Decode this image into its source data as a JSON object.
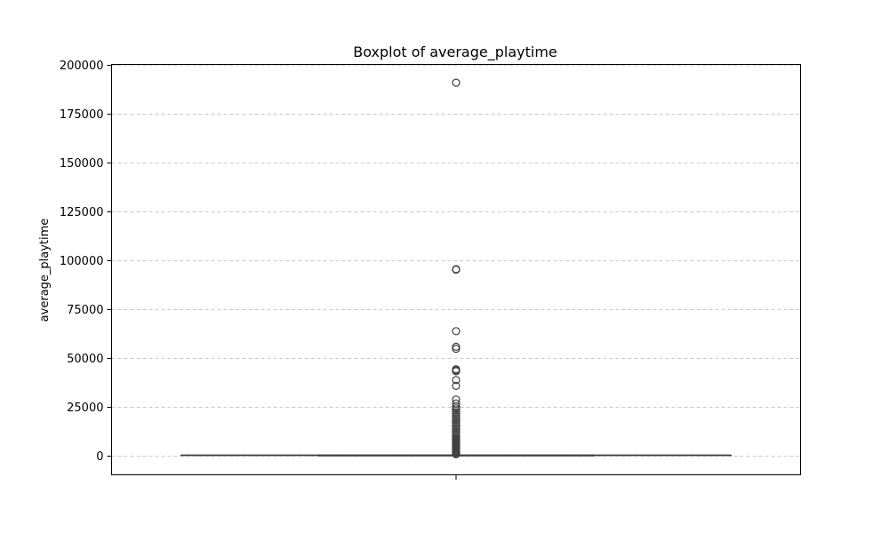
{
  "chart_data": {
    "type": "boxplot",
    "title": "Boxplot of average_playtime",
    "ylabel": "average_playtime",
    "xlabel": "",
    "ylim": [
      -10000,
      200000
    ],
    "yticks": [
      0,
      25000,
      50000,
      75000,
      100000,
      125000,
      150000,
      175000,
      200000
    ],
    "yticklabels": [
      "0",
      "25000",
      "50000",
      "75000",
      "100000",
      "125000",
      "150000",
      "175000",
      "200000"
    ],
    "grid": true,
    "box": {
      "whisker_low": 0,
      "q1": 0,
      "median": 0,
      "q3": 0,
      "whisker_high": 0
    },
    "outliers": [
      190625,
      95245,
      95000,
      63500,
      55500,
      54500,
      44000,
      43500,
      43000,
      38500,
      35500,
      28500,
      26500,
      25000,
      24000,
      23000,
      22000,
      21000,
      20000,
      19000,
      18000,
      17000,
      16000,
      15000,
      14000,
      13000,
      12000,
      11000,
      10000,
      9000,
      8500,
      8000,
      7500,
      7000,
      6500,
      6000,
      5500,
      5000,
      4500,
      4000,
      3500,
      3000,
      2500,
      2000,
      1500,
      1000,
      500
    ]
  },
  "colors": {
    "box": "#3f3f3f",
    "grid": "#c8c8c8",
    "frame": "#000000"
  }
}
